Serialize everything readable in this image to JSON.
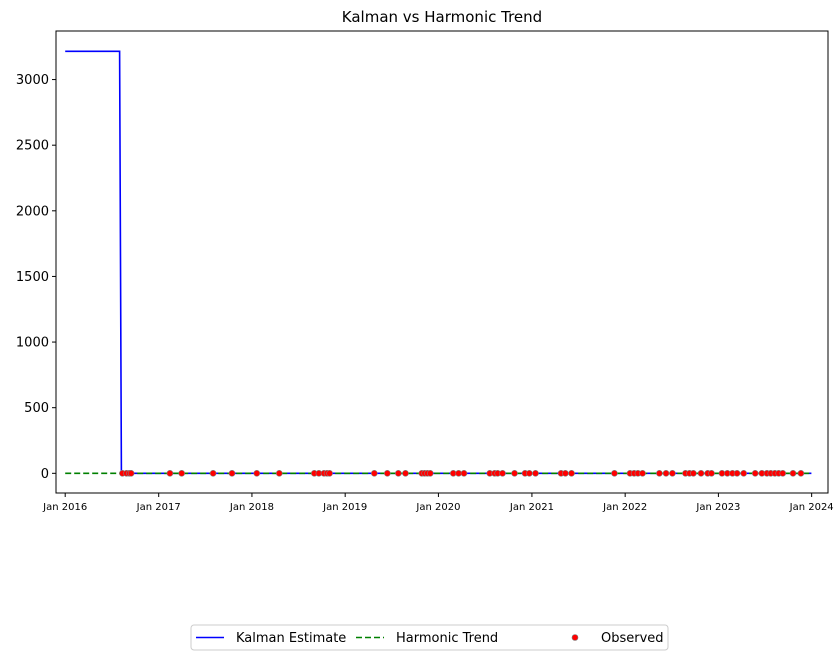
{
  "chart_data": {
    "type": "line",
    "title": "Kalman vs Harmonic Trend",
    "xlabel": "",
    "ylabel": "",
    "x_type": "date",
    "xlim": [
      "2015-11-26",
      "2024-03-05"
    ],
    "ylim": [
      -150,
      3370
    ],
    "y_ticks": [
      0,
      500,
      1000,
      1500,
      2000,
      2500,
      3000
    ],
    "x_ticks": [
      {
        "date": "2016-01-01",
        "label": "Jan 2016"
      },
      {
        "date": "2017-01-01",
        "label": "Jan 2017"
      },
      {
        "date": "2018-01-01",
        "label": "Jan 2018"
      },
      {
        "date": "2019-01-01",
        "label": "Jan 2019"
      },
      {
        "date": "2020-01-01",
        "label": "Jan 2020"
      },
      {
        "date": "2021-01-01",
        "label": "Jan 2021"
      },
      {
        "date": "2022-01-01",
        "label": "Jan 2022"
      },
      {
        "date": "2023-01-01",
        "label": "Jan 2023"
      },
      {
        "date": "2024-01-01",
        "label": "Jan 2024"
      }
    ],
    "grid": false,
    "legend_position": "bottom-center",
    "series": [
      {
        "name": "Kalman Estimate",
        "kind": "line",
        "color": "#0000ff",
        "style": "solid",
        "points": [
          [
            "2016-01-01",
            3215
          ],
          [
            "2016-08-01",
            3215
          ],
          [
            "2016-08-08",
            0
          ],
          [
            "2023-12-31",
            0
          ]
        ]
      },
      {
        "name": "Harmonic Trend",
        "kind": "line",
        "color": "#008000",
        "style": "dashed",
        "points": [
          [
            "2016-01-01",
            0
          ],
          [
            "2023-12-31",
            0
          ]
        ]
      },
      {
        "name": "Observed",
        "kind": "scatter",
        "color": "#ff0000",
        "edge_color": "#808080",
        "dates": [
          "2016-08-12",
          "2016-08-28",
          "2016-09-08",
          "2016-09-15",
          "2017-02-14",
          "2017-04-01",
          "2017-08-02",
          "2017-10-15",
          "2018-01-20",
          "2018-04-18",
          "2018-09-02",
          "2018-09-20",
          "2018-10-10",
          "2018-10-22",
          "2018-11-01",
          "2019-04-25",
          "2019-06-15",
          "2019-07-28",
          "2019-08-25",
          "2019-10-28",
          "2019-11-08",
          "2019-11-19",
          "2019-11-30",
          "2020-02-28",
          "2020-03-20",
          "2020-04-10",
          "2020-07-20",
          "2020-08-08",
          "2020-08-20",
          "2020-09-08",
          "2020-10-25",
          "2020-12-05",
          "2020-12-22",
          "2021-01-15",
          "2021-04-25",
          "2021-05-12",
          "2021-06-05",
          "2021-11-20",
          "2022-01-20",
          "2022-02-05",
          "2022-02-20",
          "2022-03-10",
          "2022-05-15",
          "2022-06-10",
          "2022-07-05",
          "2022-08-25",
          "2022-09-10",
          "2022-09-25",
          "2022-10-25",
          "2022-11-20",
          "2022-12-05",
          "2023-01-15",
          "2023-02-05",
          "2023-02-25",
          "2023-03-15",
          "2023-04-10",
          "2023-05-25",
          "2023-06-20",
          "2023-07-10",
          "2023-07-25",
          "2023-08-10",
          "2023-08-25",
          "2023-09-10",
          "2023-10-20",
          "2023-11-20"
        ],
        "value": 0
      }
    ],
    "legend": [
      {
        "label": "Kalman Estimate",
        "series": 0
      },
      {
        "label": "Harmonic Trend",
        "series": 1
      },
      {
        "label": "Observed",
        "series": 2
      }
    ]
  }
}
